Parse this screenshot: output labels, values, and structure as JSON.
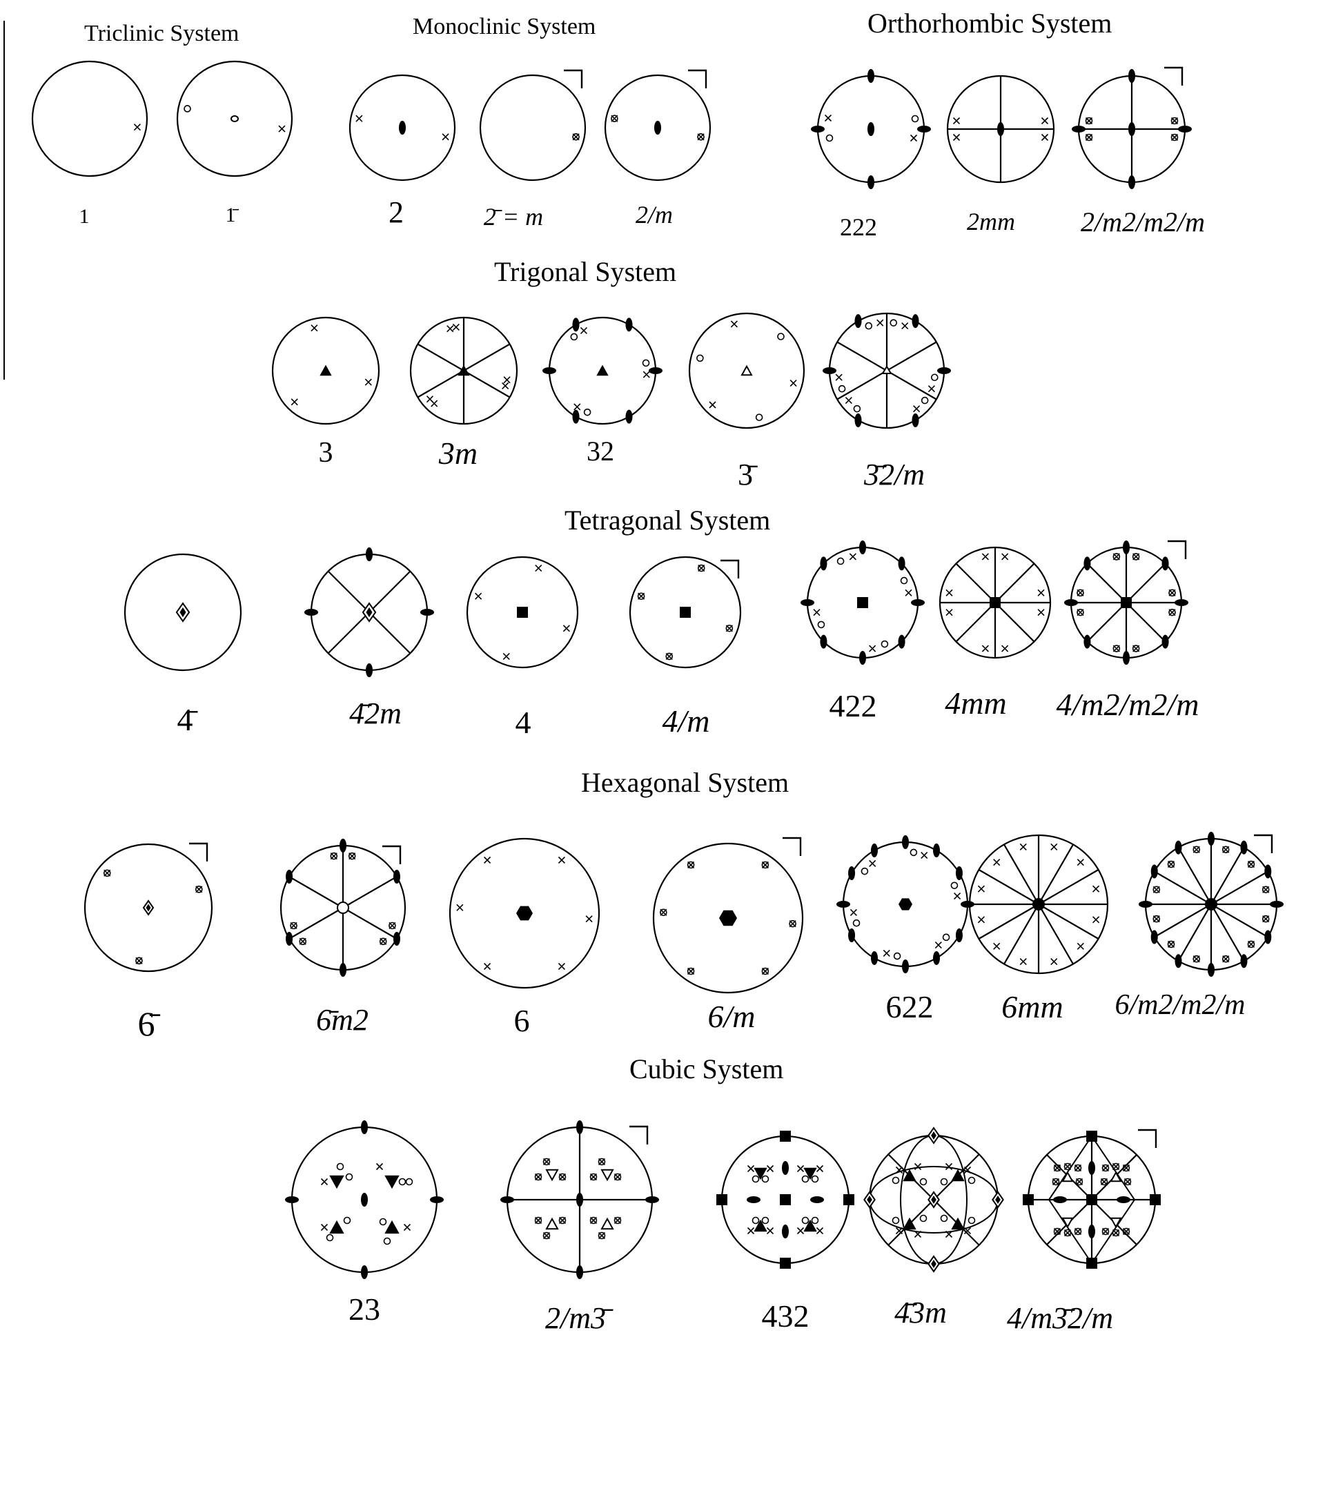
{
  "systems": {
    "triclinic": "Triclinic System",
    "monoclinic": "Monoclinic System",
    "orthorhombic": "Orthorhombic System",
    "trigonal": "Trigonal System",
    "tetragonal": "Tetragonal System",
    "hexagonal": "Hexagonal System",
    "cubic": "Cubic System"
  },
  "point_groups": {
    "pg_1": "1",
    "pg_1bar": "1̄",
    "pg_2": "2",
    "pg_m": "2̄ = m",
    "pg_2m": "2/m",
    "pg_222": "222",
    "pg_2mm": "2mm",
    "pg_mmm": "2/m2/m2/m",
    "pg_3": "3",
    "pg_3m": "3m",
    "pg_32": "32",
    "pg_3bar": "3̄",
    "pg_3bar2m": "3̄2/m",
    "pg_4bar": "4̄",
    "pg_4bar2m": "4̄2m",
    "pg_4": "4",
    "pg_4m": "4/m",
    "pg_422": "422",
    "pg_4mm": "4mm",
    "pg_4mmm": "4/m2/m2/m",
    "pg_6bar": "6̄",
    "pg_6barm2": "6̄m2",
    "pg_6": "6",
    "pg_6m": "6/m",
    "pg_622": "622",
    "pg_6mm": "6mm",
    "pg_6mmm": "6/m2/m2/m",
    "pg_23": "23",
    "pg_m3bar": "2/m3̄",
    "pg_432": "432",
    "pg_4bar3m": "4̄3m",
    "pg_m3barm": "4/m3̄2/m"
  },
  "colors": {
    "ink": "#000000",
    "paper": "#ffffff"
  }
}
